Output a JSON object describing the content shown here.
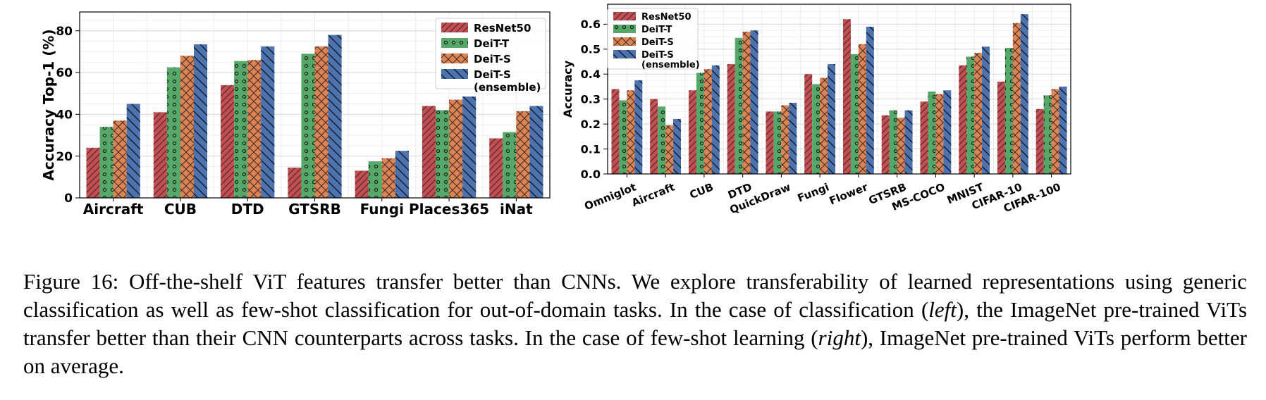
{
  "chart_data": [
    {
      "type": "bar",
      "title": "",
      "xlabel": "",
      "ylabel": "Accuracy Top-1 (%)",
      "ylim": [
        0,
        89
      ],
      "yticks": [
        0,
        20,
        40,
        60,
        80
      ],
      "ytick_labels": [
        "0",
        "20",
        "40",
        "60",
        "80"
      ],
      "grid": true,
      "legend_position": "top-right",
      "categories": [
        "Aircraft",
        "CUB",
        "DTD",
        "GTSRB",
        "Fungi",
        "Places365",
        "iNat"
      ],
      "series": [
        {
          "name": "ResNet50",
          "values": [
            24,
            41,
            54,
            14.5,
            13,
            44,
            28.5
          ]
        },
        {
          "name": "DeiT-T",
          "values": [
            34,
            62.5,
            65.5,
            69,
            17.5,
            42,
            31.5
          ]
        },
        {
          "name": "DeiT-S",
          "values": [
            37,
            68,
            66,
            72.5,
            19,
            47,
            41.5
          ]
        },
        {
          "name": "DeiT-S\n(ensemble)",
          "values": [
            45,
            73.5,
            72.5,
            78,
            22.5,
            48.5,
            44
          ]
        }
      ]
    },
    {
      "type": "bar",
      "title": "",
      "xlabel": "",
      "ylabel": "Accuracy",
      "ylim": [
        0,
        0.68
      ],
      "yticks": [
        0,
        0.1,
        0.2,
        0.3,
        0.4,
        0.5,
        0.6
      ],
      "ytick_labels": [
        "0.0",
        "0.1",
        "0.2",
        "0.3",
        "0.4",
        "0.5",
        "0.6"
      ],
      "grid": true,
      "legend_position": "top-left",
      "categories": [
        "Omniglot",
        "Aircraft",
        "CUB",
        "DTD",
        "QuickDraw",
        "Fungi",
        "Flower",
        "GTSRB",
        "MS-COCO",
        "MNIST",
        "CIFAR-10",
        "CIFAR-100"
      ],
      "series": [
        {
          "name": "ResNet50",
          "values": [
            0.34,
            0.3,
            0.335,
            0.44,
            0.25,
            0.4,
            0.62,
            0.235,
            0.29,
            0.435,
            0.37,
            0.26
          ]
        },
        {
          "name": "DeiT-T",
          "values": [
            0.295,
            0.27,
            0.405,
            0.545,
            0.25,
            0.36,
            0.48,
            0.255,
            0.33,
            0.47,
            0.505,
            0.315
          ]
        },
        {
          "name": "DeiT-S",
          "values": [
            0.335,
            0.195,
            0.42,
            0.57,
            0.275,
            0.385,
            0.52,
            0.225,
            0.32,
            0.485,
            0.605,
            0.34
          ]
        },
        {
          "name": "DeiT-S\n(ensemble)",
          "values": [
            0.375,
            0.22,
            0.435,
            0.575,
            0.285,
            0.44,
            0.59,
            0.255,
            0.335,
            0.51,
            0.64,
            0.35
          ]
        }
      ]
    }
  ],
  "colors": {
    "ResNet50": "#c44e52",
    "DeiT-T": "#55a868",
    "DeiT-S": "#dd8452",
    "DeiT-S-ensemble": "#4c72b0"
  },
  "caption": {
    "prefix": "Figure 16: Off-the-shelf ViT features transfer better than CNNs. We explore transferability of learned representations using generic classification as well as few-shot classification for out-of-domain tasks. In the case of classification (",
    "left_word": "left",
    "middle": "), the ImageNet pre-trained ViTs transfer better than their CNN counterparts across tasks. In the case of few-shot learning (",
    "right_word": "right",
    "suffix": "), ImageNet pre-trained ViTs perform better on average."
  }
}
